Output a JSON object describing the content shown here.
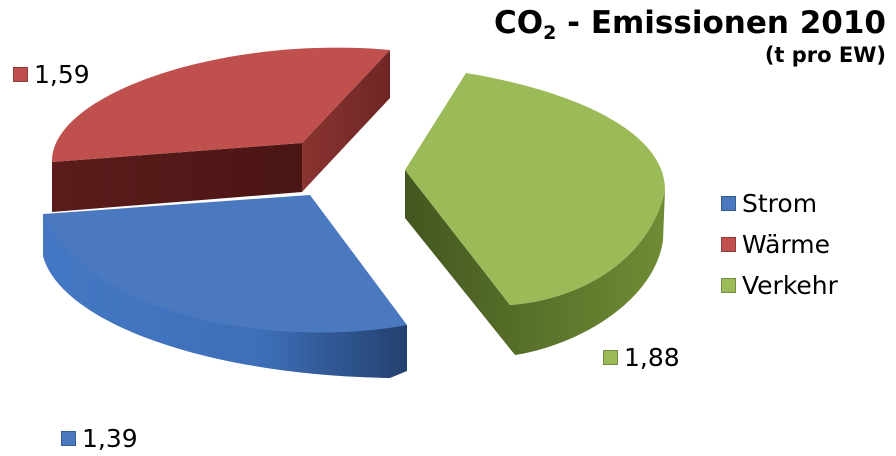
{
  "chart_data": {
    "type": "pie",
    "title": "CO",
    "title_subscript": "2",
    "title_rest": " - Emissionen 2010",
    "subtitle": "(t pro EW)",
    "categories": [
      "Strom",
      "Wärme",
      "Verkehr"
    ],
    "values": [
      1.39,
      1.59,
      1.88
    ],
    "value_labels": [
      "1,39",
      "1,59",
      "1,88"
    ],
    "colors": [
      "#4a79bf",
      "#c0504d",
      "#9bbb59"
    ],
    "legend_position": "right",
    "exploded": true,
    "three_d": true
  }
}
